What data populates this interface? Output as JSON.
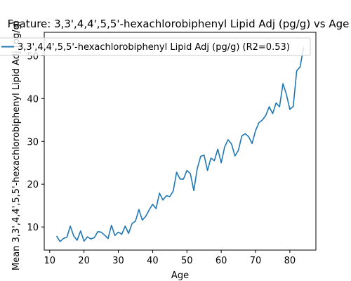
{
  "chart_data": {
    "type": "line",
    "title": "Feature: 3,3',4,4',5,5'-hexachlorobiphenyl Lipid Adj (pg/g) vs Age",
    "xlabel": "Age",
    "ylabel": "Mean 3,3',4,4',5,5'-hexachlorobiphenyl Lipid Adj (pg/g)",
    "xlim": [
      8.4,
      87.6
    ],
    "ylim": [
      4.6,
      55.5
    ],
    "xticks": [
      10,
      20,
      30,
      40,
      50,
      60,
      70,
      80
    ],
    "yticks": [
      10,
      20,
      30,
      40,
      50
    ],
    "grid": false,
    "legend_position": "top",
    "series": [
      {
        "name": "3,3',4,4',5,5'-hexachlorobiphenyl Lipid Adj (pg/g) (R2=0.53)",
        "color": "#1f77b4",
        "x": [
          12,
          13,
          14,
          15,
          16,
          17,
          18,
          19,
          20,
          21,
          22,
          23,
          24,
          25,
          26,
          27,
          28,
          29,
          30,
          31,
          32,
          33,
          34,
          35,
          36,
          37,
          38,
          39,
          40,
          41,
          42,
          43,
          44,
          45,
          46,
          47,
          48,
          49,
          50,
          51,
          52,
          53,
          54,
          55,
          56,
          57,
          58,
          59,
          60,
          61,
          62,
          63,
          64,
          65,
          66,
          67,
          68,
          69,
          70,
          71,
          72,
          73,
          74,
          75,
          76,
          77,
          78,
          79,
          80,
          81,
          82,
          83,
          84
        ],
        "y": [
          7.9,
          6.6,
          7.3,
          7.6,
          10.2,
          7.9,
          6.9,
          9.1,
          6.7,
          7.7,
          7.2,
          7.5,
          8.9,
          8.8,
          8.1,
          7.3,
          10.4,
          8.0,
          8.8,
          8.3,
          10.2,
          8.5,
          10.8,
          11.4,
          14.1,
          11.6,
          12.5,
          14.0,
          15.3,
          14.3,
          17.9,
          16.3,
          17.3,
          17.1,
          18.4,
          22.8,
          21.2,
          21.2,
          23.2,
          22.5,
          18.5,
          23.6,
          26.5,
          26.8,
          23.2,
          26.1,
          25.5,
          28.2,
          25.0,
          28.7,
          30.4,
          29.4,
          26.6,
          27.9,
          31.3,
          31.8,
          31.1,
          29.5,
          32.5,
          34.4,
          35.0,
          36.1,
          38.1,
          36.5,
          39.0,
          38.1,
          43.5,
          41.0,
          37.5,
          38.2,
          46.5,
          47.4,
          52.0
        ]
      }
    ]
  }
}
